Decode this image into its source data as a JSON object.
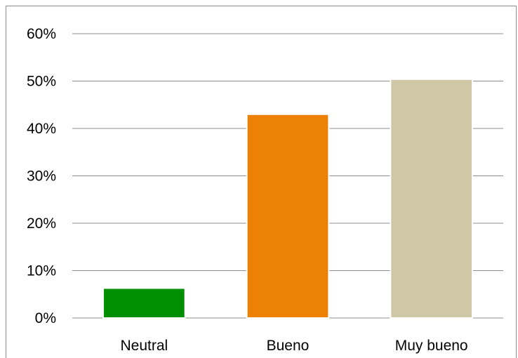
{
  "chart_data": {
    "type": "bar",
    "categories": [
      "Neutral",
      "Bueno",
      "Muy bueno"
    ],
    "values": [
      6.3,
      43,
      50.4
    ],
    "title": "",
    "xlabel": "",
    "ylabel": "",
    "ylim": [
      0,
      60
    ],
    "y_ticks": [
      "0%",
      "10%",
      "20%",
      "30%",
      "40%",
      "50%",
      "60%"
    ],
    "grid": true,
    "legend": "none",
    "colors": [
      "#008f00",
      "#ec8106",
      "#cfc8a6"
    ]
  }
}
